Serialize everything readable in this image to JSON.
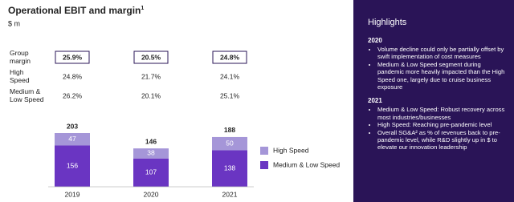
{
  "chart_data": {
    "type": "stacked-bar",
    "title": "Operational EBIT and margin",
    "title_footnote": "1",
    "subtitle": "$ m",
    "categories": [
      "2019",
      "2020",
      "2021"
    ],
    "series": [
      {
        "name": "Medium & Low Speed",
        "color": "#6a35c2",
        "values": [
          156,
          107,
          138
        ]
      },
      {
        "name": "High Speed",
        "color": "#a596d8",
        "values": [
          47,
          38,
          50
        ]
      }
    ],
    "totals": [
      203,
      146,
      188
    ],
    "margin_table": {
      "rows": [
        {
          "label": "Group margin",
          "values": [
            "25.9%",
            "20.5%",
            "24.8%"
          ]
        },
        {
          "label": "High Speed",
          "values": [
            "24.8%",
            "21.7%",
            "24.1%"
          ]
        },
        {
          "label": "Medium & Low Speed",
          "values": [
            "26.2%",
            "20.1%",
            "25.1%"
          ]
        }
      ]
    }
  },
  "highlights": {
    "title": "Highlights",
    "sections": [
      {
        "heading": "2020",
        "bullets": [
          "Volume decline could only be partially offset by swift implementation of cost measures",
          "Medium & Low Speed segment during pandemic more heavily impacted than the High Speed one, largely due to cruise business exposure"
        ]
      },
      {
        "heading": "2021",
        "bullets": [
          "Medium & Low Speed: Robust recovery across most industries/businesses",
          "High Speed: Reaching pre-pandemic level",
          "Overall SG&A² as % of revenues back to pre-pandemic level, while R&D slightly up in $ to elevate our innovation leadership"
        ]
      }
    ]
  }
}
